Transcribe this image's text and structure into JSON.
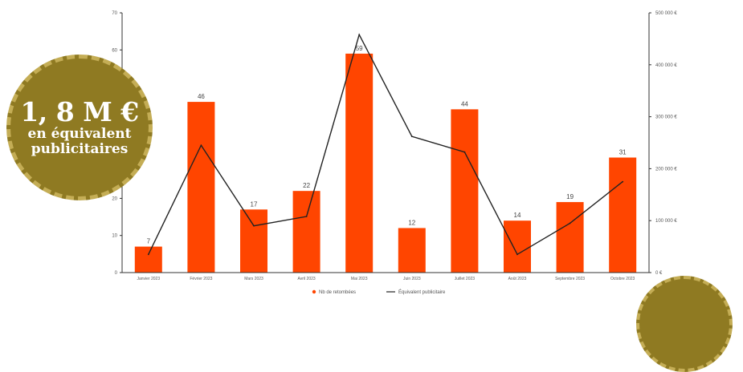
{
  "chart_data": {
    "type": "bar",
    "categories": [
      "Janvier 2023",
      "Février 2023",
      "Mars 2023",
      "Avril 2023",
      "Mai 2023",
      "Juin 2023",
      "Juillet 2023",
      "Août 2023",
      "Septembre 2023",
      "Octobre 2023"
    ],
    "series": [
      {
        "name": "Nb de retombées",
        "type": "bar",
        "axis": "left",
        "values": [
          7,
          46,
          17,
          22,
          59,
          12,
          44,
          14,
          19,
          31
        ]
      },
      {
        "name": "Équivalent publicitaire",
        "type": "line",
        "axis": "right",
        "values": [
          35000,
          245000,
          90000,
          108000,
          458000,
          262000,
          232000,
          35000,
          95000,
          175000
        ]
      }
    ],
    "y_left": {
      "ylim": [
        0,
        70
      ],
      "ticks": [
        "0",
        "10",
        "20",
        "30",
        "40",
        "50",
        "60",
        "70"
      ]
    },
    "y_right": {
      "ylim": [
        0,
        500000
      ],
      "ticks": [
        "0 €",
        "100 000 €",
        "200 000 €",
        "300 000 €",
        "400 000 €",
        "500 000 €"
      ]
    },
    "colors": {
      "bar": "#ff4500",
      "line": "#222222",
      "axis": "#333333"
    },
    "legend_position": "bottom-center"
  },
  "badge": {
    "amount": "1, 8 M €",
    "line1": "en équivalent",
    "line2": "publicitaires",
    "color": "#8f7a22"
  }
}
